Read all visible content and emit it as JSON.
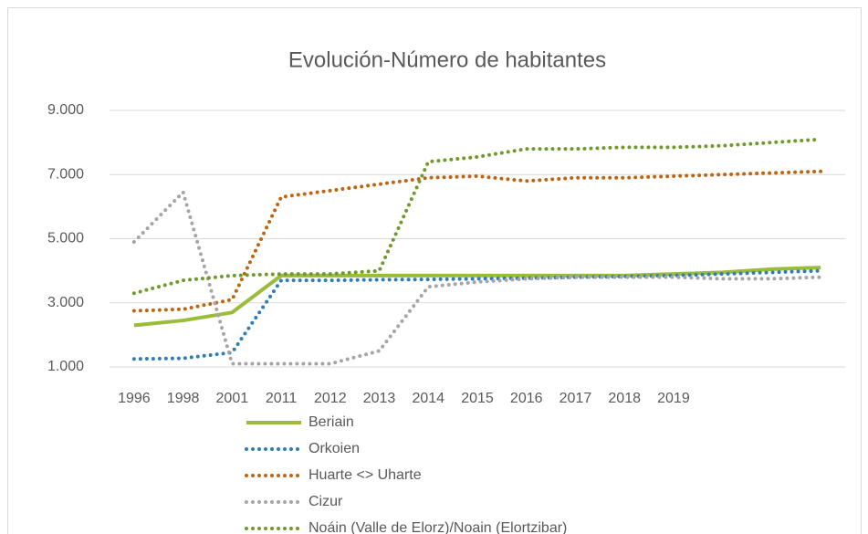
{
  "chart_data": {
    "type": "line",
    "title": "Evolución-Número de habitantes",
    "categories": [
      "1996",
      "1998",
      "2001",
      "2011",
      "2012",
      "2013",
      "2014",
      "2015",
      "2016",
      "2017",
      "2018",
      "2019",
      null,
      null,
      null
    ],
    "series": [
      {
        "name": "Beriain",
        "color": "#9bbb3b",
        "style": "solid",
        "values": [
          2300,
          2450,
          2700,
          3850,
          3850,
          3850,
          3850,
          3850,
          3850,
          3850,
          3850,
          3900,
          3950,
          4050,
          4100
        ]
      },
      {
        "name": "Orkoien",
        "color": "#2e7db5",
        "style": "dotted",
        "values": [
          1250,
          1270,
          1450,
          3700,
          3700,
          3720,
          3730,
          3750,
          3770,
          3800,
          3820,
          3850,
          3900,
          3950,
          4000
        ]
      },
      {
        "name": "Huarte <> Uharte",
        "color": "#c0640f",
        "style": "dotted",
        "values": [
          2750,
          2800,
          3100,
          6300,
          6500,
          6700,
          6900,
          6950,
          6800,
          6900,
          6900,
          6950,
          7000,
          7050,
          7100
        ]
      },
      {
        "name": "Cizur",
        "color": "#a5a5a5",
        "style": "dotted",
        "values": [
          4900,
          6450,
          1100,
          1100,
          1100,
          1500,
          3500,
          3650,
          3750,
          3800,
          3800,
          3800,
          3750,
          3750,
          3800
        ]
      },
      {
        "name": "Noáin (Valle de Elorz)/Noain (Elortzibar)",
        "color": "#6e9a2a",
        "style": "dotted",
        "values": [
          3300,
          3700,
          3850,
          3900,
          3900,
          4000,
          7400,
          7550,
          7800,
          7800,
          7850,
          7850,
          7900,
          8000,
          8100
        ]
      }
    ],
    "ylim": [
      1000,
      9000
    ],
    "yticks": [
      {
        "value": 1000,
        "label": "1.000"
      },
      {
        "value": 3000,
        "label": "3.000"
      },
      {
        "value": 5000,
        "label": "5.000"
      },
      {
        "value": 7000,
        "label": "7.000"
      },
      {
        "value": 9000,
        "label": "9.000"
      }
    ],
    "grid": true,
    "legend": "bottom"
  }
}
